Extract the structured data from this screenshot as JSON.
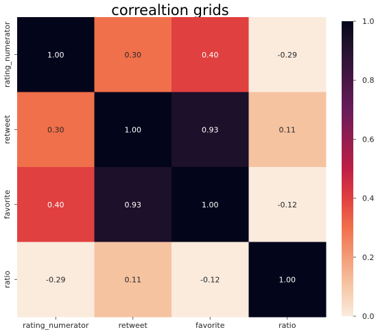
{
  "chart_data": {
    "type": "heatmap",
    "title": "correaltion grids",
    "xlabels": [
      "rating_numerator",
      "retweet",
      "favorite",
      "ratio"
    ],
    "ylabels": [
      "rating_numerator",
      "retweet",
      "favorite",
      "ratio"
    ],
    "values": [
      [
        1.0,
        0.3,
        0.4,
        -0.29
      ],
      [
        0.3,
        1.0,
        0.93,
        0.11
      ],
      [
        0.4,
        0.93,
        1.0,
        -0.12
      ],
      [
        -0.29,
        0.11,
        -0.12,
        1.0
      ]
    ],
    "annotation_format": "0.00",
    "colorbar": {
      "range": [
        0.0,
        1.0
      ],
      "ticks": [
        "0.0",
        "0.2",
        "0.4",
        "0.6",
        "0.8",
        "1.0"
      ],
      "colormap": "rocket_r"
    }
  }
}
